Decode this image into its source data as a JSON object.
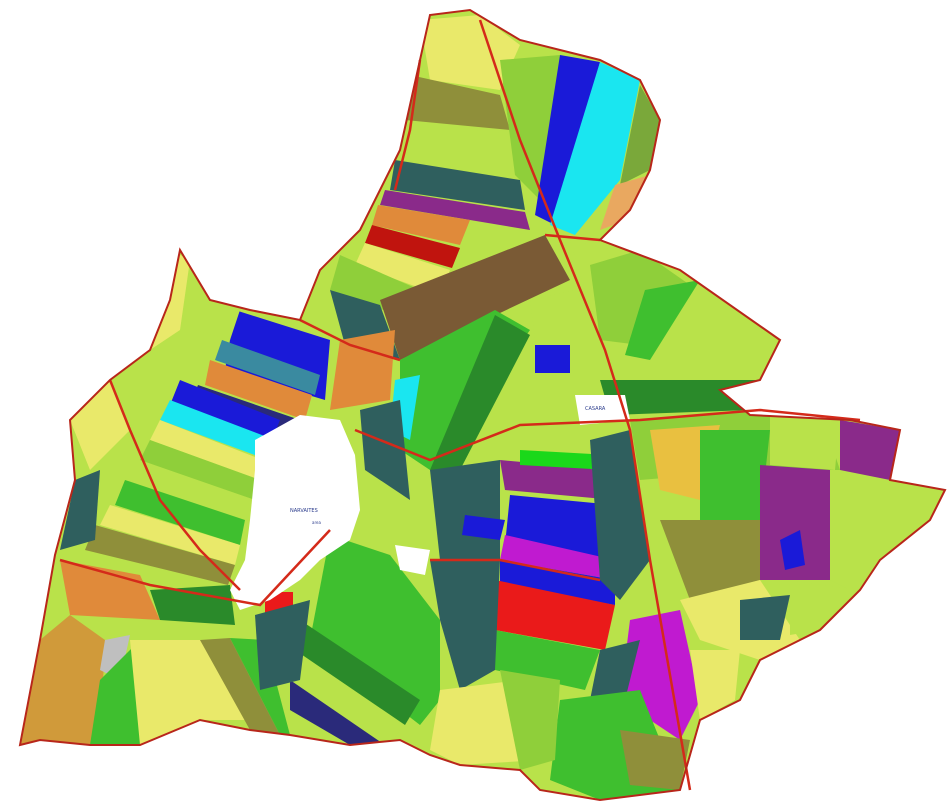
{
  "map": {
    "labels": {
      "village_center": "NARVAITES",
      "village_center_sub": "area",
      "hamlet": "CASARA"
    },
    "colors": {
      "background": "#ffffff",
      "boundary_red": "#d42a1a",
      "teal_dark": "#2f5f5e",
      "lime": "#b9e24a",
      "lime_dark": "#8fcf3a",
      "green": "#3fbf2f",
      "green_dark": "#2a8a2a",
      "yellow": "#e9e96a",
      "olive": "#8f8f3a",
      "orange": "#e08a3a",
      "brown": "#7a5a35",
      "blue": "#1a1ad8",
      "cyan": "#1ae6f0",
      "magenta": "#c01ad0",
      "purple": "#8a2a8a",
      "red": "#ea1a1a",
      "navy": "#2a2a7a",
      "pink": "#e01a9a",
      "grey": "#bfbfbf"
    }
  }
}
